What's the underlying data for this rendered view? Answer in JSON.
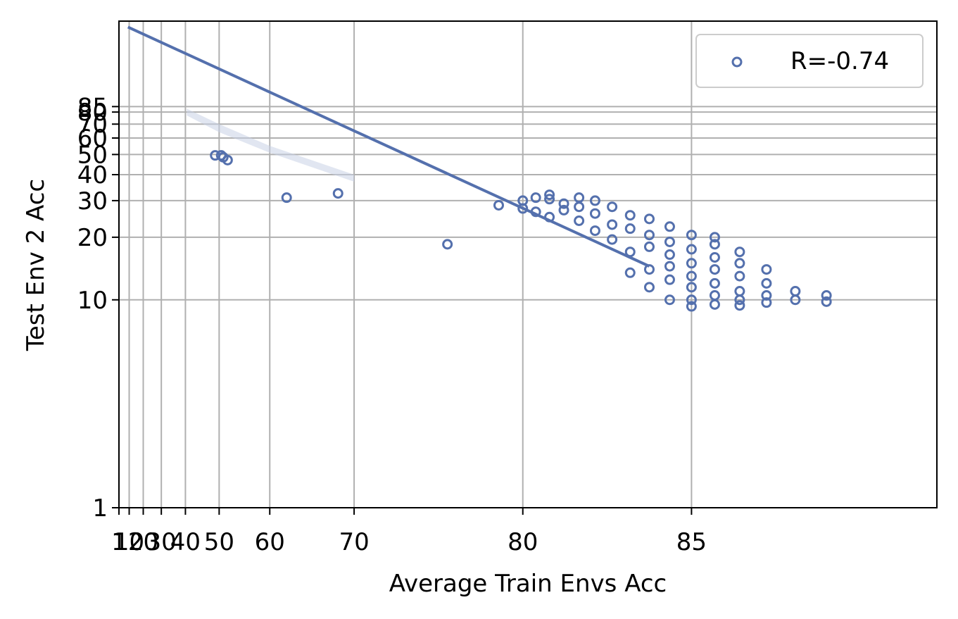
{
  "chart_data": {
    "type": "scatter",
    "xlabel": "Average Train Envs Acc",
    "ylabel": "Test Env 2 Acc",
    "xticks": [
      1,
      10,
      20,
      30,
      40,
      50,
      60,
      70,
      80,
      85
    ],
    "yticks": [
      1,
      10,
      20,
      30,
      40,
      50,
      60,
      70,
      80,
      85
    ],
    "xlim": [
      1,
      89
    ],
    "ylim": [
      1,
      219
    ],
    "grid": true,
    "legend_position": "top-right",
    "colors": {
      "series": "#5470ad",
      "grid": "#b0b0b0",
      "band": "#c8d1e6"
    },
    "series": [
      {
        "name": "R=-0.74",
        "marker": "open-circle",
        "points": [
          {
            "x": 49.0,
            "y": 49.5
          },
          {
            "x": 50.5,
            "y": 49.5
          },
          {
            "x": 51.0,
            "y": 48.5
          },
          {
            "x": 52.0,
            "y": 47.0
          },
          {
            "x": 62.5,
            "y": 31.0
          },
          {
            "x": 68.5,
            "y": 32.5
          },
          {
            "x": 76.5,
            "y": 18.5
          },
          {
            "x": 79.0,
            "y": 28.5
          },
          {
            "x": 80.0,
            "y": 30.0
          },
          {
            "x": 80.5,
            "y": 31.0
          },
          {
            "x": 81.0,
            "y": 32.0
          },
          {
            "x": 81.5,
            "y": 29.0
          },
          {
            "x": 82.0,
            "y": 31.0
          },
          {
            "x": 82.5,
            "y": 30.0
          },
          {
            "x": 80.5,
            "y": 26.5
          },
          {
            "x": 81.0,
            "y": 25.0
          },
          {
            "x": 81.5,
            "y": 27.0
          },
          {
            "x": 82.0,
            "y": 24.0
          },
          {
            "x": 82.5,
            "y": 26.0
          },
          {
            "x": 83.0,
            "y": 28.0
          },
          {
            "x": 83.0,
            "y": 23.0
          },
          {
            "x": 83.5,
            "y": 25.5
          },
          {
            "x": 83.5,
            "y": 22.0
          },
          {
            "x": 84.0,
            "y": 24.5
          },
          {
            "x": 84.0,
            "y": 20.5
          },
          {
            "x": 84.0,
            "y": 18.0
          },
          {
            "x": 84.5,
            "y": 22.5
          },
          {
            "x": 84.5,
            "y": 19.0
          },
          {
            "x": 84.5,
            "y": 16.5
          },
          {
            "x": 84.0,
            "y": 14.0
          },
          {
            "x": 84.5,
            "y": 12.5
          },
          {
            "x": 85.0,
            "y": 20.5
          },
          {
            "x": 85.0,
            "y": 17.5
          },
          {
            "x": 85.0,
            "y": 15.0
          },
          {
            "x": 85.0,
            "y": 13.0
          },
          {
            "x": 85.0,
            "y": 11.5
          },
          {
            "x": 85.0,
            "y": 10.0
          },
          {
            "x": 85.5,
            "y": 18.5
          },
          {
            "x": 85.5,
            "y": 16.0
          },
          {
            "x": 85.5,
            "y": 14.0
          },
          {
            "x": 85.5,
            "y": 12.0
          },
          {
            "x": 85.5,
            "y": 10.5
          },
          {
            "x": 85.5,
            "y": 9.5
          },
          {
            "x": 86.0,
            "y": 17.0
          },
          {
            "x": 86.0,
            "y": 15.0
          },
          {
            "x": 86.0,
            "y": 13.0
          },
          {
            "x": 86.0,
            "y": 11.0
          },
          {
            "x": 86.0,
            "y": 10.0
          },
          {
            "x": 86.5,
            "y": 14.0
          },
          {
            "x": 86.5,
            "y": 12.0
          },
          {
            "x": 86.5,
            "y": 10.5
          },
          {
            "x": 86.5,
            "y": 9.7
          },
          {
            "x": 87.0,
            "y": 11.0
          },
          {
            "x": 87.0,
            "y": 10.0
          },
          {
            "x": 87.5,
            "y": 10.5
          },
          {
            "x": 87.5,
            "y": 9.8
          },
          {
            "x": 84.0,
            "y": 11.5
          },
          {
            "x": 84.5,
            "y": 10.0
          },
          {
            "x": 85.0,
            "y": 9.3
          },
          {
            "x": 86.0,
            "y": 9.4
          },
          {
            "x": 83.5,
            "y": 17.0
          },
          {
            "x": 83.0,
            "y": 19.5
          },
          {
            "x": 82.5,
            "y": 21.5
          },
          {
            "x": 82.0,
            "y": 28.0
          },
          {
            "x": 81.0,
            "y": 30.5
          },
          {
            "x": 80.0,
            "y": 27.5
          },
          {
            "x": 84.5,
            "y": 14.5
          },
          {
            "x": 85.5,
            "y": 20.0
          },
          {
            "x": 83.5,
            "y": 13.5
          }
        ]
      }
    ],
    "regression_line": {
      "from": {
        "x": 9.0,
        "y": 205
      },
      "to": {
        "x": 84.0,
        "y": 14.5
      },
      "band": [
        {
          "x": 40.5,
          "lo": 77,
          "hi": 83
        },
        {
          "x": 50.0,
          "lo": 64,
          "hi": 70
        },
        {
          "x": 60.0,
          "lo": 51,
          "hi": 55
        },
        {
          "x": 70.0,
          "lo": 37,
          "hi": 40
        }
      ]
    }
  }
}
